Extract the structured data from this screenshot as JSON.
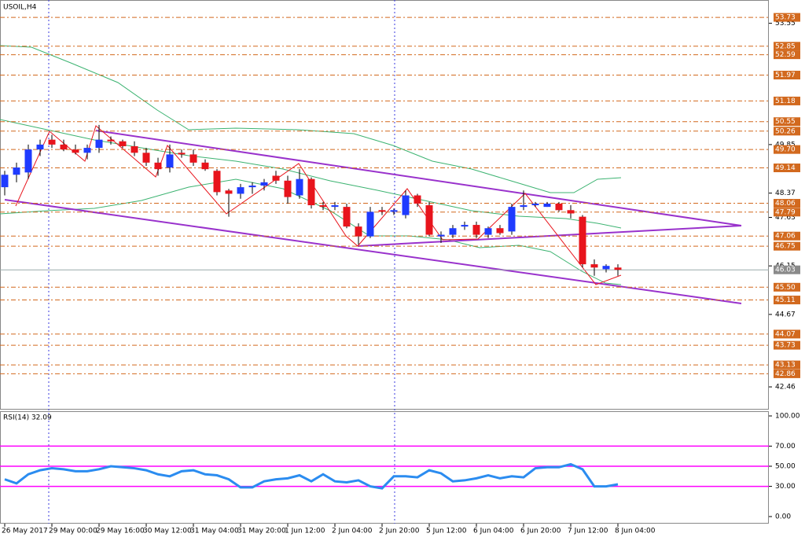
{
  "chart_data": {
    "type": "candlestick",
    "title": "USOIL,H4",
    "up_color": "#1f3bff",
    "down_color": "#e8141c",
    "open": [
      48.55,
      48.93,
      49.0,
      49.7,
      50.0,
      49.85,
      49.7,
      49.6,
      49.75,
      50.0,
      49.95,
      49.8,
      49.6,
      49.3,
      49.15,
      49.6,
      49.55,
      49.3,
      49.05,
      48.45,
      48.35,
      48.55,
      48.6,
      48.9,
      48.75,
      48.3,
      48.8,
      48.0,
      47.95,
      47.95,
      47.35,
      47.05,
      47.85,
      47.8,
      47.7,
      48.3,
      48.0,
      47.05,
      47.1,
      47.35,
      47.4,
      47.1,
      47.3,
      47.2,
      47.95,
      48.0,
      47.95,
      48.05,
      47.85,
      47.65,
      46.2,
      46.05,
      46.1
    ],
    "high": [
      49.05,
      49.3,
      49.85,
      50.0,
      50.15,
      50.0,
      49.85,
      49.85,
      50.45,
      50.1,
      50.0,
      49.95,
      49.75,
      49.45,
      49.85,
      49.7,
      49.7,
      49.4,
      49.1,
      48.5,
      48.65,
      48.7,
      48.8,
      49.05,
      48.9,
      49.1,
      48.85,
      48.1,
      48.1,
      48.05,
      47.45,
      47.95,
      47.95,
      47.9,
      48.45,
      48.35,
      48.1,
      47.2,
      47.4,
      47.5,
      47.5,
      47.35,
      47.4,
      48.05,
      48.45,
      48.1,
      48.1,
      48.1,
      48.0,
      47.7,
      46.35,
      46.2,
      46.2
    ],
    "low": [
      48.3,
      48.7,
      48.8,
      49.5,
      49.75,
      49.65,
      49.55,
      49.4,
      49.6,
      49.85,
      49.75,
      49.5,
      49.2,
      48.9,
      49.0,
      49.45,
      49.2,
      49.05,
      48.3,
      47.65,
      48.2,
      48.35,
      48.45,
      48.65,
      48.05,
      48.2,
      47.9,
      47.85,
      47.85,
      47.3,
      46.8,
      47.0,
      47.7,
      47.7,
      47.6,
      47.95,
      47.05,
      46.85,
      47.0,
      47.25,
      47.0,
      47.0,
      47.1,
      47.1,
      47.85,
      47.95,
      47.95,
      47.8,
      47.6,
      46.1,
      45.85,
      45.95,
      45.85
    ],
    "close": [
      48.93,
      49.15,
      49.7,
      49.85,
      49.85,
      49.7,
      49.6,
      49.75,
      50.0,
      49.95,
      49.8,
      49.6,
      49.3,
      49.1,
      49.55,
      49.55,
      49.3,
      49.1,
      48.4,
      48.35,
      48.55,
      48.6,
      48.7,
      48.75,
      48.25,
      48.8,
      48.0,
      47.95,
      48.0,
      47.35,
      47.05,
      47.8,
      47.8,
      47.85,
      48.3,
      48.05,
      47.1,
      47.1,
      47.3,
      47.4,
      47.1,
      47.3,
      47.15,
      47.95,
      48.0,
      48.05,
      48.05,
      47.85,
      47.75,
      46.2,
      46.1,
      46.15,
      46.03
    ],
    "ylim": [
      41.79,
      54.26
    ],
    "yticks": [
      53.55,
      49.85,
      48.37,
      47.63,
      46.15,
      44.67,
      42.46
    ],
    "level_color": "#d2691e",
    "levels": [
      53.73,
      52.85,
      52.59,
      51.97,
      51.18,
      50.55,
      50.26,
      {
        "value": 49.7,
        "label": "49.70"
      },
      49.14,
      48.06,
      47.79,
      47.06,
      46.75,
      {
        "value": 45.5,
        "label": "45.50"
      },
      45.11,
      44.07,
      43.73,
      43.13,
      42.86
    ],
    "current_price": 46.03,
    "x_labels": [
      "26 May 2017",
      "29 May 00:00",
      "29 May 16:00",
      "30 May 12:00",
      "31 May 04:00",
      "31 May 20:00",
      "1 Jun 12:00",
      "2 Jun 04:00",
      "2 Jun 20:00",
      "5 Jun 12:00",
      "6 Jun 04:00",
      "6 Jun 20:00",
      "7 Jun 12:00",
      "8 Jun 04:00"
    ],
    "indicator": {
      "type": "line",
      "title": "RSI(14) 32.09",
      "color": "#2b8cf0",
      "values": [
        37,
        33,
        42,
        46,
        48,
        47,
        45,
        45,
        47,
        50,
        49,
        48,
        46,
        42,
        40,
        45,
        46,
        42,
        41,
        37,
        29,
        29,
        35,
        37,
        38,
        41,
        35,
        42,
        35,
        34,
        36,
        30,
        28,
        40,
        40,
        39,
        46,
        43,
        35,
        36,
        38,
        41,
        38,
        40,
        39,
        48,
        49,
        49,
        52,
        47,
        30,
        30,
        32
      ],
      "ylim": [
        -8.6,
        104.7
      ],
      "yticks": [
        {
          "value": 100,
          "label": "100.00"
        },
        {
          "value": 70,
          "label": "70.00"
        },
        {
          "value": 50,
          "label": "50.00"
        },
        {
          "value": 30,
          "label": "30.00"
        },
        {
          "value": 0,
          "label": "0.00"
        }
      ],
      "level_color": "#ff00ff",
      "levels": [
        70,
        50,
        30
      ]
    }
  }
}
